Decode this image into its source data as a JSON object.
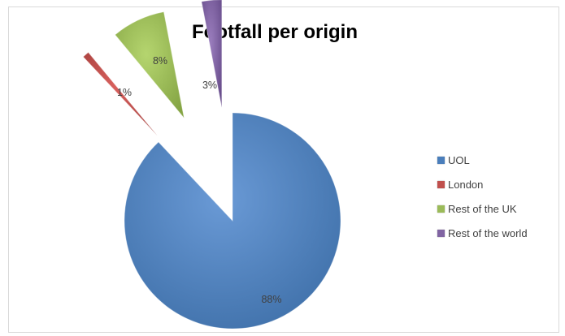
{
  "chart_data": {
    "type": "pie",
    "title": "Footfall per origin",
    "categories": [
      "UOL",
      "London",
      "Rest of the UK",
      "Rest of the world"
    ],
    "values": [
      88,
      1,
      8,
      3
    ],
    "labels": [
      "88%",
      "1%",
      "8%",
      "3%"
    ],
    "colors": [
      "#4a7ebb",
      "#c0504d",
      "#9bbb59",
      "#8064a2"
    ],
    "exploded": true,
    "legend_position": "right"
  }
}
